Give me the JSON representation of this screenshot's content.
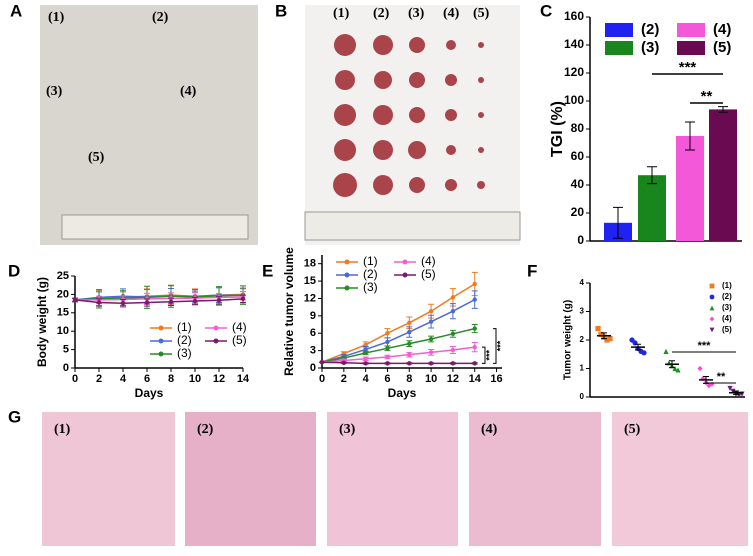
{
  "panel_labels": [
    "A",
    "B",
    "C",
    "D",
    "E",
    "F",
    "G"
  ],
  "photos": {
    "A": {
      "labels": [
        "(1)",
        "(2)",
        "(3)",
        "(4)",
        "(5)"
      ]
    },
    "B": {
      "labels": [
        "(1)",
        "(2)",
        "(3)",
        "(4)",
        "(5)"
      ]
    },
    "G": {
      "labels": [
        "(1)",
        "(2)",
        "(3)",
        "(4)",
        "(5)"
      ]
    }
  },
  "chart_data": [
    {
      "type": "bar",
      "ylabel": "TGI (%)",
      "ylim": [
        0,
        160
      ],
      "yticks": [
        0,
        20,
        40,
        60,
        80,
        100,
        120,
        140,
        160
      ],
      "series": [
        {
          "name": "(2)",
          "color": "#1f22f0",
          "values": [
            13
          ],
          "errors": [
            11
          ]
        },
        {
          "name": "(3)",
          "color": "#18861c",
          "values": [
            47
          ],
          "errors": [
            6
          ]
        },
        {
          "name": "(4)",
          "color": "#f358d8",
          "values": [
            75
          ],
          "errors": [
            10
          ]
        },
        {
          "name": "(5)",
          "color": "#6a0a50",
          "values": [
            94
          ],
          "errors": [
            2
          ]
        }
      ],
      "annotations": [
        "***",
        "**"
      ]
    },
    {
      "type": "line",
      "xlabel": "Days",
      "ylabel": "Body weight (g)",
      "xlim": [
        0,
        14
      ],
      "xticks": [
        0,
        2,
        4,
        6,
        8,
        10,
        12,
        14
      ],
      "ylim": [
        0,
        25
      ],
      "yticks": [
        0,
        5,
        10,
        15,
        20,
        25
      ],
      "x": [
        0,
        2,
        4,
        6,
        8,
        10,
        12,
        14
      ],
      "series": [
        {
          "name": "(1)",
          "color": "#f07a22",
          "values": [
            18.5,
            19,
            19.2,
            19.5,
            19.8,
            19.5,
            19.8,
            20
          ],
          "errors": [
            0.5,
            2,
            1.5,
            2,
            2.5,
            2,
            2,
            1.5
          ]
        },
        {
          "name": "(2)",
          "color": "#4a6ad8",
          "values": [
            18.5,
            19.2,
            19.5,
            19.3,
            19.6,
            19.4,
            19.8,
            19.7
          ],
          "errors": [
            0.5,
            1.5,
            2,
            2,
            2,
            1.5,
            2,
            2
          ]
        },
        {
          "name": "(3)",
          "color": "#2a8a2a",
          "values": [
            18.5,
            18.8,
            19,
            19.2,
            19.5,
            19.3,
            19.6,
            19.8
          ],
          "errors": [
            0.5,
            2.5,
            2,
            3,
            3,
            2,
            2.5,
            2.5
          ]
        },
        {
          "name": "(4)",
          "color": "#f060d0",
          "values": [
            18.5,
            18.5,
            18.6,
            18.8,
            18.9,
            19,
            19.2,
            19.3
          ],
          "errors": [
            0.5,
            1,
            1,
            1.5,
            1.5,
            1.5,
            1,
            1.5
          ]
        },
        {
          "name": "(5)",
          "color": "#7a1a6a",
          "values": [
            18.5,
            17.8,
            17.6,
            17.8,
            18,
            18.2,
            18.4,
            18.8
          ],
          "errors": [
            0.5,
            1,
            1,
            1,
            1,
            1,
            1,
            1
          ]
        }
      ]
    },
    {
      "type": "line",
      "xlabel": "Days",
      "ylabel": "Relative tumor volume",
      "xlim": [
        0,
        16.5
      ],
      "xticks": [
        0,
        2,
        4,
        6,
        8,
        10,
        12,
        14,
        16
      ],
      "ylim": [
        0,
        19.5
      ],
      "yticks": [
        0,
        3,
        6,
        9,
        12,
        15,
        18
      ],
      "x": [
        0,
        2,
        4,
        6,
        8,
        10,
        12,
        14
      ],
      "series": [
        {
          "name": "(1)",
          "color": "#f07a22",
          "values": [
            1,
            2.5,
            4,
            6,
            7.8,
            9.8,
            12.2,
            14.5
          ],
          "errors": [
            0,
            0.3,
            0.5,
            0.8,
            1,
            1.2,
            1.5,
            2
          ]
        },
        {
          "name": "(2)",
          "color": "#4a6ad8",
          "values": [
            1,
            2,
            3.2,
            4.5,
            6.2,
            8,
            9.8,
            11.8
          ],
          "errors": [
            0,
            0.3,
            0.5,
            0.7,
            0.9,
            1.1,
            1.3,
            1.5
          ]
        },
        {
          "name": "(3)",
          "color": "#2a8a2a",
          "values": [
            1,
            1.7,
            2.6,
            3.4,
            4.2,
            5,
            5.9,
            6.8
          ],
          "errors": [
            0,
            0.2,
            0.3,
            0.4,
            0.5,
            0.5,
            0.6,
            0.7
          ]
        },
        {
          "name": "(4)",
          "color": "#f060d0",
          "values": [
            1,
            1.3,
            1.6,
            1.9,
            2.3,
            2.7,
            3.1,
            3.6
          ],
          "errors": [
            0,
            0.2,
            0.3,
            0.3,
            0.4,
            0.5,
            0.6,
            0.8
          ]
        },
        {
          "name": "(5)",
          "color": "#7a1a6a",
          "values": [
            1,
            0.9,
            0.8,
            0.8,
            0.8,
            0.8,
            0.8,
            0.8
          ],
          "errors": [
            0,
            0.1,
            0.1,
            0.1,
            0.1,
            0.1,
            0.1,
            0.1
          ]
        }
      ],
      "annotations": [
        "***",
        "***"
      ]
    },
    {
      "type": "dot",
      "ylabel": "Tumor weight (g)",
      "ylim": [
        0,
        4
      ],
      "yticks": [
        0,
        1,
        2,
        3,
        4
      ],
      "series": [
        {
          "name": "(1)",
          "color": "#f07a22",
          "marker": "square",
          "values": [
            2.4,
            2.2,
            2.1,
            2.0,
            2.05
          ],
          "mean": 2.15,
          "error": 0.1
        },
        {
          "name": "(2)",
          "color": "#1f2ae0",
          "marker": "circle",
          "values": [
            2.0,
            1.9,
            1.7,
            1.6,
            1.55
          ],
          "mean": 1.75,
          "error": 0.1
        },
        {
          "name": "(3)",
          "color": "#18961c",
          "marker": "triangle",
          "values": [
            1.6,
            1.2,
            1.1,
            1.0,
            0.95
          ],
          "mean": 1.15,
          "error": 0.12
        },
        {
          "name": "(4)",
          "color": "#f050c8",
          "marker": "diamond",
          "values": [
            1.0,
            0.65,
            0.5,
            0.4,
            0.45
          ],
          "mean": 0.6,
          "error": 0.12
        },
        {
          "name": "(5)",
          "color": "#6a1a8a",
          "marker": "triangle-down",
          "values": [
            0.3,
            0.2,
            0.1,
            0.05,
            0.1
          ],
          "mean": 0.15,
          "error": 0.06
        }
      ],
      "annotations": [
        "***",
        "**"
      ]
    }
  ]
}
